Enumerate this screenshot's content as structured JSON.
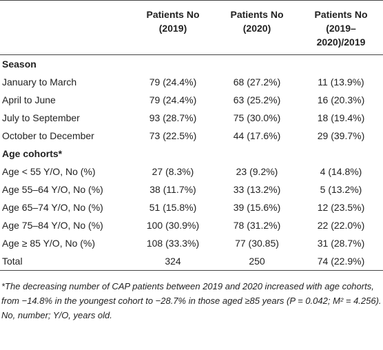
{
  "table": {
    "columns": [
      [
        "Patients No",
        "(2019)"
      ],
      [
        "Patients No",
        "(2020)"
      ],
      [
        "Patients No",
        "(2019–",
        "2020)/2019"
      ]
    ],
    "sections": [
      {
        "title": "Season",
        "rows": [
          [
            "January to March",
            "79 (24.4%)",
            "68 (27.2%)",
            "11 (13.9%)"
          ],
          [
            "April to June",
            "79 (24.4%)",
            "63 (25.2%)",
            "16 (20.3%)"
          ],
          [
            "July to September",
            "93 (28.7%)",
            "75 (30.0%)",
            "18 (19.4%)"
          ],
          [
            "October to December",
            "73 (22.5%)",
            "44 (17.6%)",
            "29 (39.7%)"
          ]
        ]
      },
      {
        "title": "Age cohorts*",
        "rows": [
          [
            "Age < 55 Y/O, No (%)",
            "27 (8.3%)",
            "23 (9.2%)",
            "4 (14.8%)"
          ],
          [
            "Age 55–64 Y/O, No (%)",
            "38 (11.7%)",
            "33 (13.2%)",
            "5 (13.2%)"
          ],
          [
            "Age 65–74 Y/O, No (%)",
            "51 (15.8%)",
            "39 (15.6%)",
            "12 (23.5%)"
          ],
          [
            "Age 75–84 Y/O, No (%)",
            "100 (30.9%)",
            "78 (31.2%)",
            "22 (22.0%)"
          ],
          [
            "Age ≥ 85 Y/O, No (%)",
            "108 (33.3%)",
            "77 (30.85)",
            "31 (28.7%)"
          ]
        ]
      }
    ],
    "total": [
      "Total",
      "324",
      "250",
      "74 (22.9%)"
    ]
  },
  "notes": [
    "*The decreasing number of CAP patients between 2019 and 2020 increased with age cohorts, from −14.8% in the youngest cohort to −28.7% in those aged ≥85 years (P = 0.042; M² = 4.256).",
    "No, number; Y/O, years old."
  ]
}
